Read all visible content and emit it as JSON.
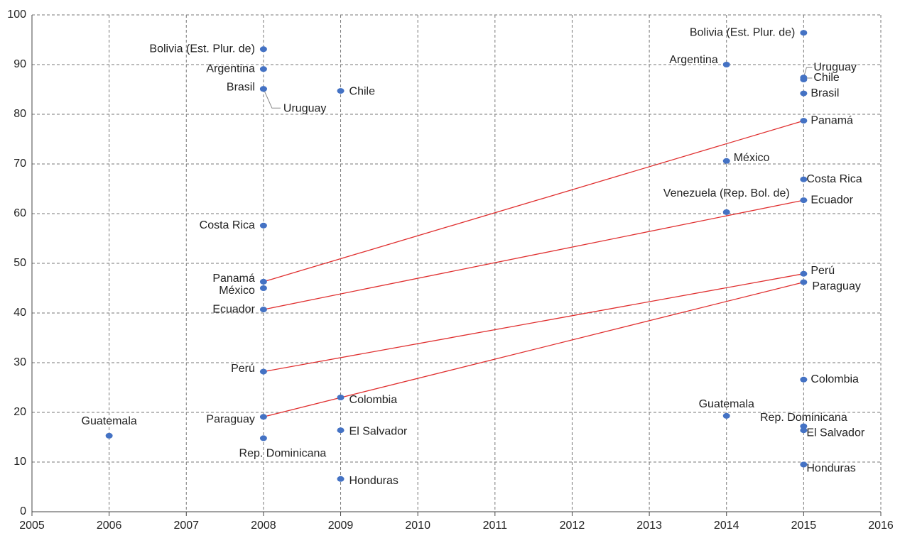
{
  "chart_data": {
    "type": "scatter",
    "xlim": [
      2005,
      2016
    ],
    "xticks": [
      2005,
      2006,
      2007,
      2008,
      2009,
      2010,
      2011,
      2012,
      2013,
      2014,
      2015,
      2016
    ],
    "ylim": [
      0,
      100
    ],
    "yticks": [
      0,
      10,
      20,
      30,
      40,
      50,
      60,
      70,
      80,
      90,
      100
    ],
    "grid": true,
    "series": [
      {
        "color": "#4472c4",
        "x": [
          2006,
          2008,
          2008,
          2008,
          2008,
          2008,
          2008,
          2008,
          2008,
          2008,
          2008,
          2008,
          2009,
          2009,
          2009,
          2009,
          2014,
          2014,
          2014,
          2014,
          2015,
          2015,
          2015,
          2015,
          2015,
          2015,
          2015,
          2015,
          2015,
          2015,
          2015,
          2015,
          2015
        ],
        "values": [
          15.3,
          93.1,
          89.1,
          85.1,
          85.1,
          57.6,
          46.3,
          45,
          40.7,
          28.2,
          19.1,
          14.8,
          84.7,
          23,
          16.4,
          6.6,
          90,
          70.6,
          60.3,
          19.3,
          96.4,
          87.4,
          87,
          84.2,
          78.7,
          66.9,
          62.7,
          47.9,
          46.2,
          26.6,
          17.2,
          16.4,
          9.5
        ],
        "labels": [
          "Guatemala",
          "Bolivia (Est. Plur. de)",
          "Argentina",
          "Brasil",
          "Uruguay",
          "Costa Rica",
          "Panamá",
          "México",
          "Ecuador",
          "Perú",
          "Paraguay",
          "Rep. Dominicana",
          "Chile",
          "Colombia",
          "El Salvador",
          "Honduras",
          "Argentina",
          "México",
          "Venezuela (Rep. Bol. de)",
          "Guatemala",
          "Bolivia (Est. Plur. de)",
          "Uruguay",
          "Chile",
          "Brasil",
          "Panamá",
          "Costa Rica",
          "Ecuador",
          "Perú",
          "Paraguay",
          "Colombia",
          "Rep. Dominicana",
          "El Salvador",
          "Honduras"
        ]
      }
    ],
    "lines": [
      {
        "color": "#e03030",
        "x": [
          2008,
          2015
        ],
        "values": [
          46.3,
          78.7
        ]
      },
      {
        "color": "#e03030",
        "x": [
          2008,
          2015
        ],
        "values": [
          40.7,
          62.7
        ]
      },
      {
        "color": "#e03030",
        "x": [
          2008,
          2015
        ],
        "values": [
          28.2,
          47.9
        ]
      },
      {
        "color": "#e03030",
        "x": [
          2008,
          2015
        ],
        "values": [
          19.1,
          46.2
        ]
      }
    ]
  }
}
